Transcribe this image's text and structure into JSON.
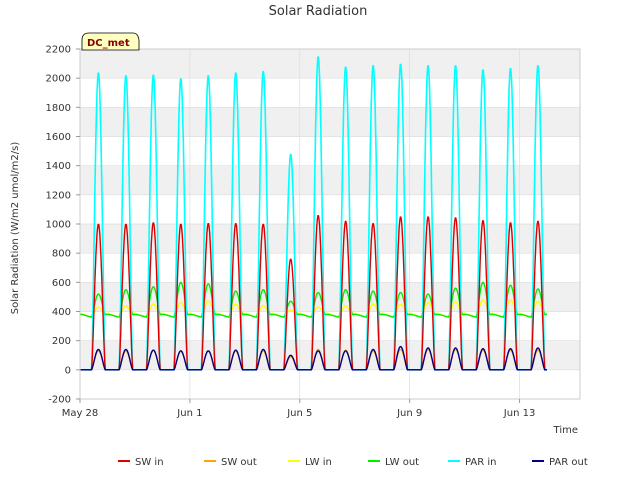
{
  "chart_data": {
    "type": "line",
    "title": "Solar Radiation",
    "xlabel": "Time",
    "ylabel": "Solar Radiation (W/m2 umol/m2/s)",
    "annotation": "DC_met",
    "ylim": [
      -200,
      2200
    ],
    "yticks": [
      -200,
      0,
      200,
      400,
      600,
      800,
      1000,
      1200,
      1400,
      1600,
      1800,
      2000,
      2200
    ],
    "xlim_days": [
      0,
      18.2
    ],
    "xticks": [
      {
        "day": 0,
        "label": "May 28"
      },
      {
        "day": 4,
        "label": "Jun 1"
      },
      {
        "day": 8,
        "label": "Jun 5"
      },
      {
        "day": 12,
        "label": "Jun 9"
      },
      {
        "day": 16,
        "label": "Jun 13"
      }
    ],
    "grid": true,
    "legend_position": "bottom",
    "series": [
      {
        "name": "SW in",
        "color": "#dd0000",
        "role": "sw_in",
        "daily_peaks": [
          1000,
          1000,
          1010,
          1000,
          1005,
          1005,
          1000,
          760,
          1060,
          1020,
          1005,
          1050,
          1050,
          1045,
          1025,
          1010,
          1020
        ]
      },
      {
        "name": "SW out",
        "color": "#ffa500",
        "role": "sw_out",
        "daily_peaks": [
          130,
          130,
          135,
          130,
          130,
          130,
          130,
          90,
          140,
          135,
          130,
          140,
          140,
          140,
          135,
          135,
          135
        ]
      },
      {
        "name": "LW in",
        "color": "#ffff00",
        "role": "lw_in",
        "daily_peaks": [
          430,
          440,
          450,
          460,
          470,
          450,
          440,
          410,
          430,
          440,
          450,
          450,
          460,
          470,
          480,
          480,
          470
        ]
      },
      {
        "name": "LW out",
        "color": "#00ee00",
        "role": "lw_out",
        "daily_peaks": [
          520,
          550,
          570,
          600,
          590,
          540,
          550,
          470,
          530,
          550,
          540,
          530,
          520,
          560,
          600,
          580,
          555
        ]
      },
      {
        "name": "PAR in",
        "color": "#00ffff",
        "role": "par_in",
        "daily_peaks": [
          2040,
          2020,
          2025,
          2000,
          2020,
          2040,
          2050,
          1480,
          2150,
          2080,
          2090,
          2100,
          2090,
          2090,
          2060,
          2070,
          2090
        ]
      },
      {
        "name": "PAR out",
        "color": "#00008b",
        "role": "par_out",
        "daily_peaks": [
          140,
          140,
          135,
          130,
          130,
          135,
          140,
          100,
          130,
          130,
          140,
          160,
          150,
          150,
          145,
          145,
          150
        ]
      }
    ]
  }
}
